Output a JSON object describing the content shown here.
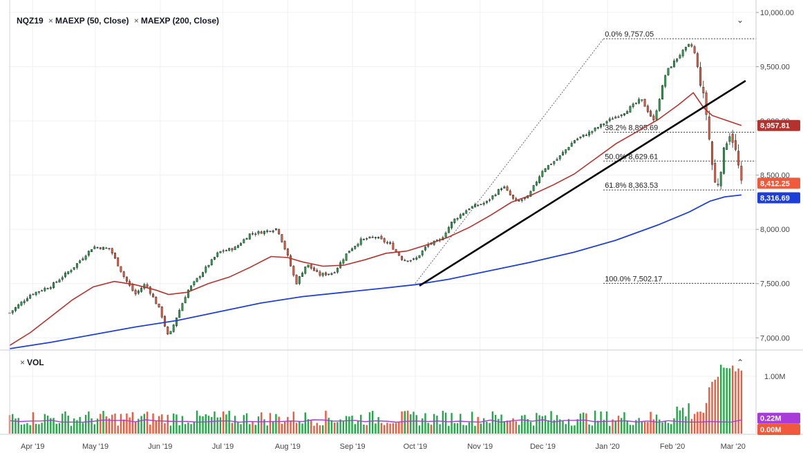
{
  "legend": {
    "symbol": "NQZ19",
    "ma50": "MAEXP (50, Close)",
    "ma200": "MAEXP (200, Close)",
    "vol": "VOL",
    "remove": "×"
  },
  "colors": {
    "up": "#26a64a",
    "down": "#ef5a3c",
    "ma50": "#b5312b",
    "ma200": "#1e3fd6",
    "volma": "#a93bd8",
    "trendline": "#000000",
    "fib": "#333333"
  },
  "icons": {
    "collapse_main": "chevron-down-icon",
    "collapse_vol": "chevron-up-icon"
  },
  "chart_data": {
    "type": "candlestick",
    "y_ticks": [
      "10,000.00",
      "9,500.00",
      "9,000.00",
      "8,500.00",
      "8,000.00",
      "7,500.00",
      "7,000.00"
    ],
    "y_tick_values": [
      10000,
      9500,
      9000,
      8500,
      8000,
      7500,
      7000
    ],
    "ylim": [
      6900,
      10000
    ],
    "x_labels": [
      "Apr '19",
      "May '19",
      "Jun '19",
      "Jul '19",
      "Aug '19",
      "Sep '19",
      "Oct '19",
      "Nov '19",
      "Dec '19",
      "Jan '20",
      "Feb '20",
      "Mar '20"
    ],
    "x_label_days": [
      11,
      41,
      72,
      102,
      133,
      164,
      194,
      225,
      255,
      286,
      317,
      346
    ],
    "total_days": 355,
    "price_path": [
      [
        0,
        7230
      ],
      [
        10,
        7400
      ],
      [
        20,
        7480
      ],
      [
        30,
        7640
      ],
      [
        40,
        7840
      ],
      [
        48,
        7820
      ],
      [
        55,
        7550
      ],
      [
        60,
        7400
      ],
      [
        65,
        7500
      ],
      [
        72,
        7250
      ],
      [
        76,
        7000
      ],
      [
        80,
        7200
      ],
      [
        85,
        7430
      ],
      [
        92,
        7600
      ],
      [
        100,
        7790
      ],
      [
        108,
        7830
      ],
      [
        115,
        7960
      ],
      [
        122,
        7980
      ],
      [
        128,
        8010
      ],
      [
        133,
        7750
      ],
      [
        137,
        7500
      ],
      [
        142,
        7680
      ],
      [
        148,
        7580
      ],
      [
        155,
        7600
      ],
      [
        162,
        7800
      ],
      [
        168,
        7900
      ],
      [
        175,
        7930
      ],
      [
        182,
        7860
      ],
      [
        188,
        7720
      ],
      [
        194,
        7720
      ],
      [
        200,
        7860
      ],
      [
        206,
        7900
      ],
      [
        212,
        8080
      ],
      [
        220,
        8200
      ],
      [
        228,
        8250
      ],
      [
        236,
        8400
      ],
      [
        242,
        8250
      ],
      [
        248,
        8300
      ],
      [
        255,
        8550
      ],
      [
        262,
        8650
      ],
      [
        270,
        8820
      ],
      [
        278,
        8900
      ],
      [
        286,
        9000
      ],
      [
        294,
        9080
      ],
      [
        302,
        9200
      ],
      [
        308,
        9000
      ],
      [
        314,
        9450
      ],
      [
        320,
        9600
      ],
      [
        325,
        9700
      ],
      [
        327,
        9680
      ],
      [
        330,
        9400
      ],
      [
        333,
        9100
      ],
      [
        336,
        8600
      ],
      [
        338,
        8350
      ],
      [
        340,
        8550
      ],
      [
        342,
        8750
      ],
      [
        344,
        8900
      ],
      [
        346,
        8820
      ],
      [
        348,
        8650
      ],
      [
        350,
        8412
      ]
    ],
    "ma50_path": [
      [
        0,
        6930
      ],
      [
        10,
        7050
      ],
      [
        20,
        7200
      ],
      [
        30,
        7350
      ],
      [
        40,
        7470
      ],
      [
        50,
        7520
      ],
      [
        60,
        7490
      ],
      [
        70,
        7440
      ],
      [
        76,
        7400
      ],
      [
        85,
        7420
      ],
      [
        95,
        7500
      ],
      [
        105,
        7560
      ],
      [
        115,
        7650
      ],
      [
        125,
        7750
      ],
      [
        133,
        7740
      ],
      [
        140,
        7700
      ],
      [
        150,
        7660
      ],
      [
        160,
        7670
      ],
      [
        170,
        7720
      ],
      [
        180,
        7780
      ],
      [
        190,
        7800
      ],
      [
        200,
        7860
      ],
      [
        210,
        7930
      ],
      [
        220,
        8020
      ],
      [
        230,
        8130
      ],
      [
        240,
        8250
      ],
      [
        250,
        8320
      ],
      [
        260,
        8410
      ],
      [
        270,
        8510
      ],
      [
        280,
        8650
      ],
      [
        290,
        8790
      ],
      [
        300,
        8900
      ],
      [
        310,
        9010
      ],
      [
        320,
        9150
      ],
      [
        327,
        9260
      ],
      [
        332,
        9120
      ],
      [
        336,
        9050
      ],
      [
        342,
        9010
      ],
      [
        350,
        8957.81
      ]
    ],
    "ma200_path": [
      [
        0,
        6900
      ],
      [
        20,
        6960
      ],
      [
        40,
        7030
      ],
      [
        60,
        7100
      ],
      [
        80,
        7160
      ],
      [
        100,
        7240
      ],
      [
        120,
        7320
      ],
      [
        140,
        7380
      ],
      [
        160,
        7420
      ],
      [
        180,
        7460
      ],
      [
        194,
        7490
      ],
      [
        210,
        7540
      ],
      [
        230,
        7620
      ],
      [
        250,
        7700
      ],
      [
        270,
        7790
      ],
      [
        290,
        7900
      ],
      [
        310,
        8040
      ],
      [
        325,
        8160
      ],
      [
        335,
        8260
      ],
      [
        342,
        8300
      ],
      [
        350,
        8316.69
      ]
    ],
    "current": {
      "close": "8,412.25",
      "ma50": "8,957.81",
      "ma200": "8,316.69",
      "close_value": 8412.25,
      "ma50_value": 8957.81,
      "ma200_value": 8316.69
    },
    "fib_levels": [
      {
        "label": "0.0% 9,757.05",
        "value": 9757.05,
        "x_start_day": 284
      },
      {
        "label": "38.2% 8,895.69",
        "value": 8895.69,
        "x_start_day": 284
      },
      {
        "label": "50.0% 8,629.61",
        "value": 8629.61,
        "x_start_day": 284
      },
      {
        "label": "61.8% 8,363.53",
        "value": 8363.53,
        "x_start_day": 284
      },
      {
        "label": "100.0% 7,502.17",
        "value": 7502.17,
        "x_start_day": 284
      }
    ],
    "fib_diagonal": {
      "from": [
        194,
        7502.17
      ],
      "to": [
        284,
        9757.05
      ]
    },
    "trendline": {
      "from": [
        196,
        7480
      ],
      "to": [
        352,
        9370
      ]
    },
    "volume": {
      "y_ticks": [
        "1.00M"
      ],
      "y_tick_values": [
        1000000
      ],
      "ymax": 1350000,
      "current_vol": "0.00M",
      "vol_ma": "0.22M",
      "vol_ma_value": 220000,
      "typical": 300000,
      "spike_start_day": 334,
      "spike_peak": 1260000
    }
  }
}
